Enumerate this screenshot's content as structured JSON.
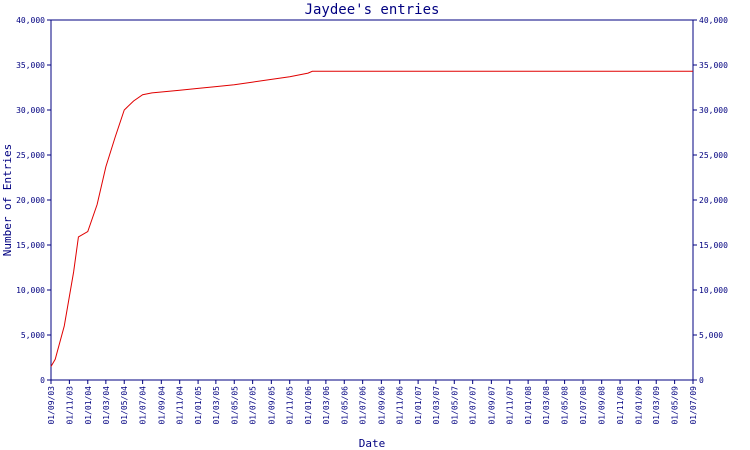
{
  "chart_data": {
    "type": "line",
    "title": "Jaydee's entries",
    "xlabel": "Date",
    "ylabel": "Number of Entries",
    "ylim": [
      0,
      40000
    ],
    "yticks": [
      0,
      5000,
      10000,
      15000,
      20000,
      25000,
      30000,
      35000,
      40000
    ],
    "ytick_labels": [
      "0",
      "5,000",
      "10,000",
      "15,000",
      "20,000",
      "25,000",
      "30,000",
      "35,000",
      "40,000"
    ],
    "xticks": [
      "01/09/03",
      "01/11/03",
      "01/01/04",
      "01/03/04",
      "01/05/04",
      "01/07/04",
      "01/09/04",
      "01/11/04",
      "01/01/05",
      "01/03/05",
      "01/05/05",
      "01/07/05",
      "01/09/05",
      "01/11/05",
      "01/01/06",
      "01/03/06",
      "01/05/06",
      "01/07/06",
      "01/09/06",
      "01/11/06",
      "01/01/07",
      "01/03/07",
      "01/05/07",
      "01/07/07",
      "01/09/07",
      "01/11/07",
      "01/01/08",
      "01/03/08",
      "01/05/08",
      "01/07/08",
      "01/09/08",
      "01/11/08",
      "01/01/09",
      "01/03/09",
      "01/05/09",
      "01/07/09"
    ],
    "grid": false,
    "colors": {
      "line": "#e00000",
      "axis": "#000080",
      "text": "#000080"
    },
    "series": [
      {
        "x": [
          "01/09/03",
          "15/09/03",
          "15/10/03",
          "15/11/03",
          "01/12/03",
          "01/01/04",
          "01/02/04",
          "01/03/04",
          "01/04/04",
          "01/05/04",
          "01/06/04",
          "01/07/04",
          "01/08/04",
          "01/09/04",
          "01/11/04",
          "01/01/05",
          "01/03/05",
          "01/05/05",
          "01/07/05",
          "01/09/05",
          "01/11/05",
          "01/01/06",
          "15/01/06",
          "01/07/09"
        ],
        "y": [
          1500,
          2300,
          6000,
          12000,
          15900,
          16500,
          19500,
          23700,
          27000,
          30000,
          31000,
          31700,
          31900,
          32000,
          32200,
          32400,
          32600,
          32800,
          33100,
          33400,
          33700,
          34100,
          34300,
          34300
        ]
      }
    ]
  }
}
